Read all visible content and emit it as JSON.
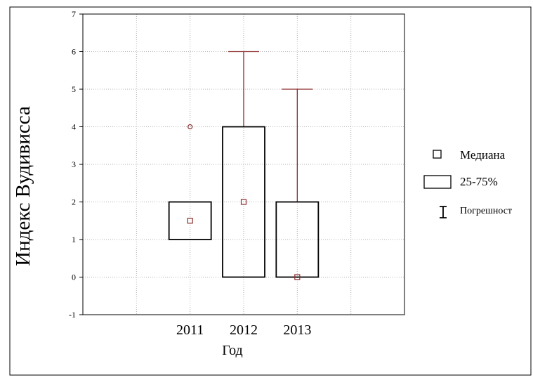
{
  "chart_data": {
    "type": "box",
    "ylabel": "Индекс Вудивисса",
    "xlabel": "Год",
    "ylim": [
      -1,
      7
    ],
    "yticks": [
      "-1",
      "0",
      "1",
      "2",
      "3",
      "4",
      "5",
      "6",
      "7"
    ],
    "categories": [
      "2011",
      "2012",
      "2013"
    ],
    "boxes": [
      {
        "category": "2011",
        "median": 1.5,
        "q1": 1,
        "q3": 2,
        "whisker_low": 1,
        "whisker_high": 2,
        "outliers": [
          4
        ]
      },
      {
        "category": "2012",
        "median": 2,
        "q1": 0,
        "q3": 4,
        "whisker_low": 0,
        "whisker_high": 6,
        "outliers": []
      },
      {
        "category": "2013",
        "median": 0,
        "q1": 0,
        "q3": 2,
        "whisker_low": 0,
        "whisker_high": 5,
        "outliers": []
      }
    ],
    "grid": true,
    "legend_position": "right",
    "legend": [
      "Медиана",
      "25-75%",
      "Погрешност"
    ],
    "colors": {
      "box": "#000000",
      "marker": "#8b2b2b",
      "whisker": "#8b2b2b",
      "grid": "#b0b0b0",
      "plot_bg": "#ffffff"
    }
  }
}
